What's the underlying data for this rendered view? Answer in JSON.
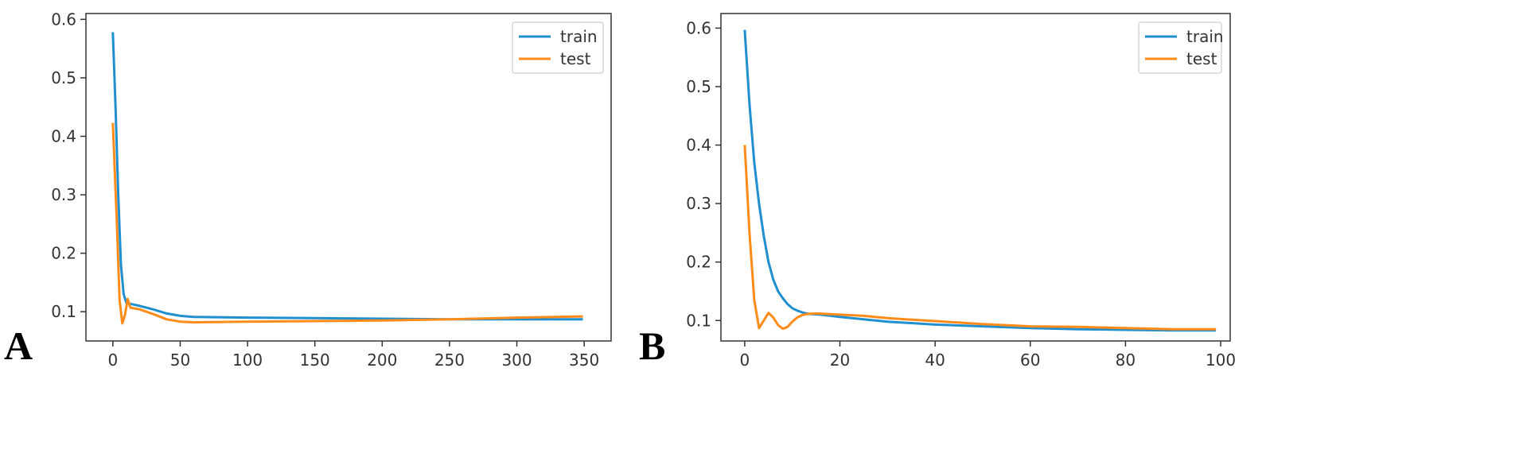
{
  "chart_data": [
    {
      "type": "line",
      "panel_label": "A",
      "xlim": [
        -20,
        370
      ],
      "ylim": [
        0.05,
        0.61
      ],
      "x_ticks": [
        0,
        50,
        100,
        150,
        200,
        250,
        300,
        350
      ],
      "y_ticks": [
        0.1,
        0.2,
        0.3,
        0.4,
        0.5,
        0.6
      ],
      "grid": false,
      "legend_position": "top-right",
      "series": [
        {
          "name": "train",
          "color": "#1f8fcf",
          "points": [
            [
              0,
              0.578
            ],
            [
              2,
              0.45
            ],
            [
              4,
              0.3
            ],
            [
              6,
              0.18
            ],
            [
              8,
              0.13
            ],
            [
              10,
              0.115
            ],
            [
              20,
              0.11
            ],
            [
              30,
              0.104
            ],
            [
              40,
              0.097
            ],
            [
              50,
              0.093
            ],
            [
              60,
              0.091
            ],
            [
              100,
              0.09
            ],
            [
              150,
              0.089
            ],
            [
              200,
              0.088
            ],
            [
              250,
              0.087
            ],
            [
              300,
              0.087
            ],
            [
              349,
              0.087
            ]
          ]
        },
        {
          "name": "test",
          "color": "#ff8c1a",
          "points": [
            [
              0,
              0.423
            ],
            [
              3,
              0.25
            ],
            [
              5,
              0.12
            ],
            [
              7,
              0.08
            ],
            [
              9,
              0.095
            ],
            [
              11,
              0.122
            ],
            [
              13,
              0.107
            ],
            [
              20,
              0.104
            ],
            [
              30,
              0.096
            ],
            [
              40,
              0.087
            ],
            [
              50,
              0.083
            ],
            [
              60,
              0.082
            ],
            [
              100,
              0.083
            ],
            [
              150,
              0.084
            ],
            [
              200,
              0.085
            ],
            [
              250,
              0.087
            ],
            [
              300,
              0.09
            ],
            [
              349,
              0.092
            ]
          ]
        }
      ]
    },
    {
      "type": "line",
      "panel_label": "B",
      "xlim": [
        -5,
        102
      ],
      "ylim": [
        0.065,
        0.625
      ],
      "x_ticks": [
        0,
        20,
        40,
        60,
        80,
        100
      ],
      "y_ticks": [
        0.1,
        0.2,
        0.3,
        0.4,
        0.5,
        0.6
      ],
      "grid": false,
      "legend_position": "top-right",
      "series": [
        {
          "name": "train",
          "color": "#1f8fcf",
          "points": [
            [
              0,
              0.597
            ],
            [
              1,
              0.47
            ],
            [
              2,
              0.37
            ],
            [
              3,
              0.3
            ],
            [
              4,
              0.245
            ],
            [
              5,
              0.2
            ],
            [
              6,
              0.17
            ],
            [
              7,
              0.15
            ],
            [
              8,
              0.138
            ],
            [
              9,
              0.128
            ],
            [
              10,
              0.121
            ],
            [
              11,
              0.117
            ],
            [
              12,
              0.114
            ],
            [
              13,
              0.112
            ],
            [
              14,
              0.111
            ],
            [
              16,
              0.11
            ],
            [
              20,
              0.106
            ],
            [
              30,
              0.098
            ],
            [
              40,
              0.093
            ],
            [
              50,
              0.09
            ],
            [
              60,
              0.087
            ],
            [
              70,
              0.085
            ],
            [
              80,
              0.084
            ],
            [
              90,
              0.083
            ],
            [
              99,
              0.083
            ]
          ]
        },
        {
          "name": "test",
          "color": "#ff8c1a",
          "points": [
            [
              0,
              0.4
            ],
            [
              1,
              0.25
            ],
            [
              2,
              0.135
            ],
            [
              3,
              0.087
            ],
            [
              4,
              0.1
            ],
            [
              5,
              0.113
            ],
            [
              6,
              0.105
            ],
            [
              7,
              0.092
            ],
            [
              8,
              0.086
            ],
            [
              9,
              0.089
            ],
            [
              10,
              0.098
            ],
            [
              11,
              0.105
            ],
            [
              12,
              0.109
            ],
            [
              13,
              0.111
            ],
            [
              15,
              0.112
            ],
            [
              20,
              0.11
            ],
            [
              25,
              0.108
            ],
            [
              30,
              0.104
            ],
            [
              40,
              0.099
            ],
            [
              50,
              0.094
            ],
            [
              60,
              0.09
            ],
            [
              70,
              0.089
            ],
            [
              80,
              0.087
            ],
            [
              90,
              0.085
            ],
            [
              99,
              0.085
            ]
          ]
        }
      ]
    }
  ]
}
